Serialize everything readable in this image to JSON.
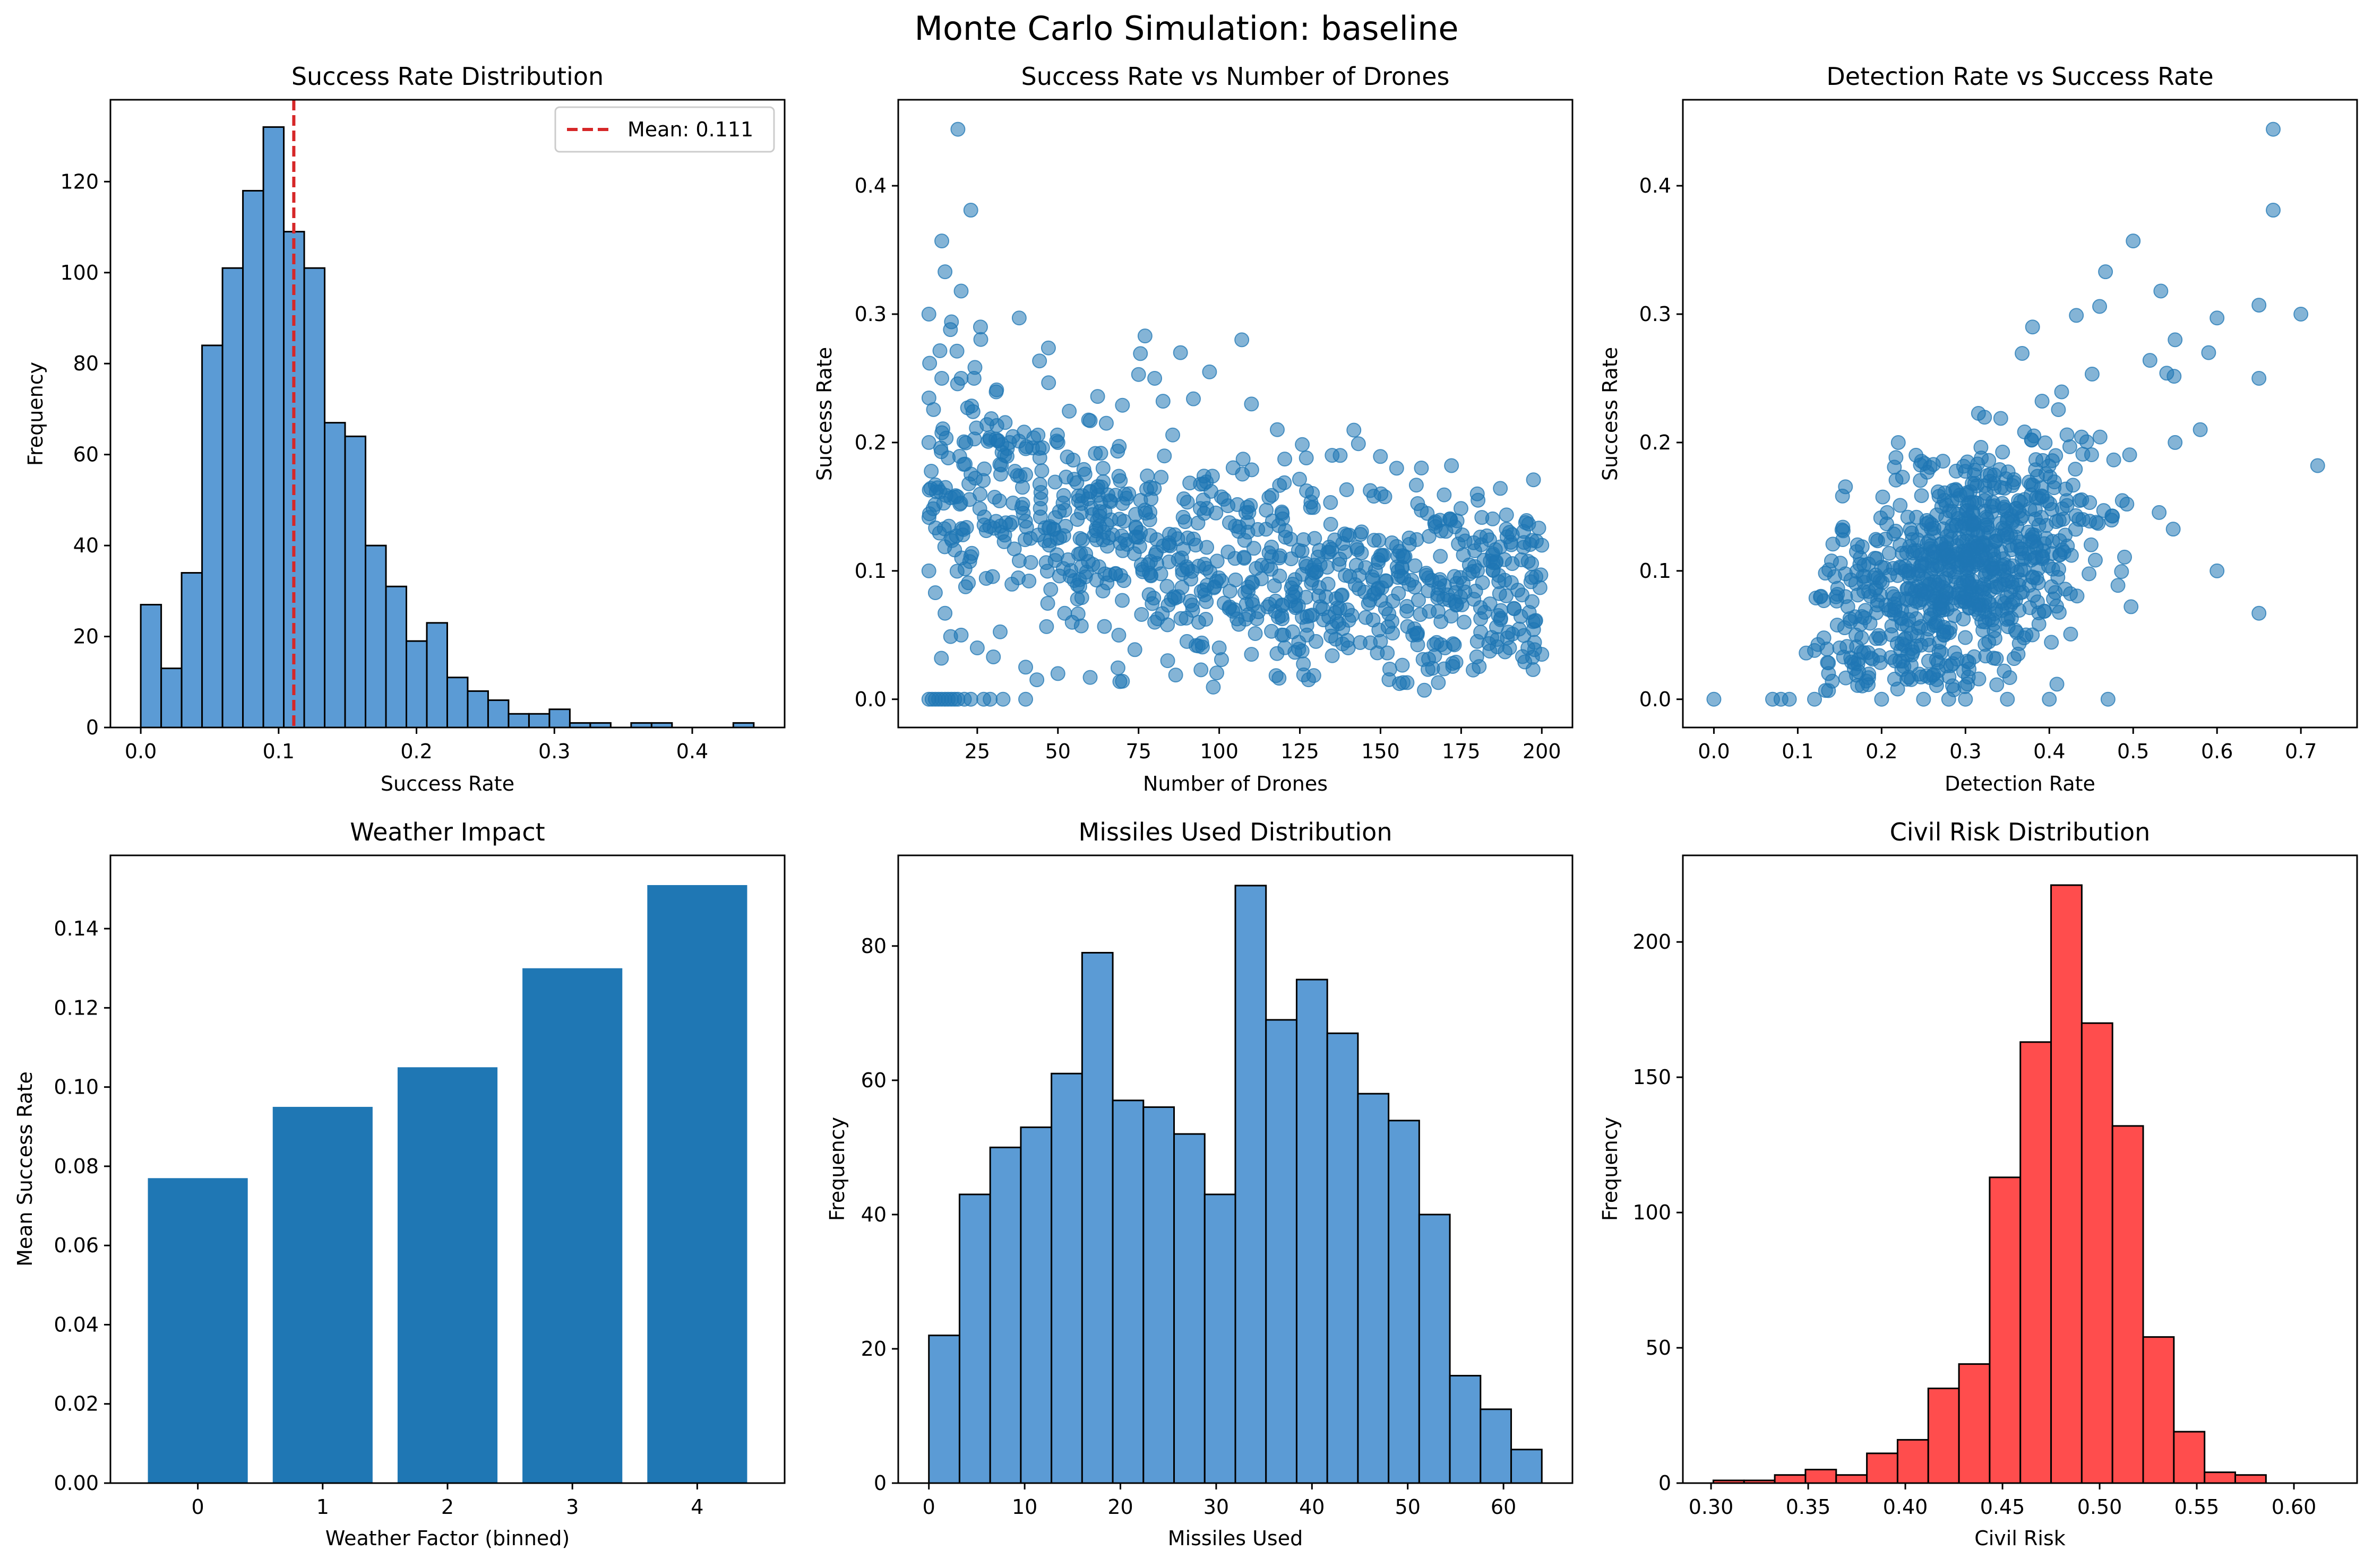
{
  "figure": {
    "suptitle": "Monte Carlo Simulation: baseline"
  },
  "colors": {
    "blue": "#1f77b4",
    "histBlue": "#5b9bd5",
    "red": "#ff4d4d",
    "meanLine": "#d62728",
    "edge": "#000000"
  },
  "chart_data": [
    {
      "id": "success",
      "type": "bar",
      "title": "Success Rate Distribution",
      "xlabel": "Success Rate",
      "ylabel": "Frequency",
      "xlim": [
        -0.022,
        0.467
      ],
      "ylim": [
        0,
        138
      ],
      "xticks": [
        0.0,
        0.1,
        0.2,
        0.3,
        0.4
      ],
      "xticklabels": [
        "0.0",
        "0.1",
        "0.2",
        "0.3",
        "0.4"
      ],
      "yticks": [
        0,
        20,
        40,
        60,
        80,
        100,
        120
      ],
      "bins": {
        "start": 0.0,
        "width": 0.01482
      },
      "values": [
        27,
        13,
        34,
        84,
        101,
        118,
        132,
        109,
        101,
        67,
        64,
        40,
        31,
        19,
        23,
        11,
        8,
        6,
        3,
        3,
        4,
        1,
        1,
        0,
        1,
        1,
        0,
        0,
        0,
        1
      ],
      "mean_line": {
        "x": 0.111,
        "label": "Mean: 0.111"
      },
      "legend": {
        "location": "upper right",
        "entries": [
          "Mean: 0.111"
        ]
      }
    },
    {
      "id": "drones",
      "type": "scatter",
      "title": "Success Rate vs Number of Drones",
      "xlabel": "Number of Drones",
      "ylabel": "Success Rate",
      "xlim": [
        0.5,
        209.5
      ],
      "ylim": [
        -0.022,
        0.467
      ],
      "xticks": [
        25,
        50,
        75,
        100,
        125,
        150,
        175,
        200
      ],
      "yticks": [
        0.0,
        0.1,
        0.2,
        0.3,
        0.4
      ],
      "yticklabels": [
        "0.0",
        "0.1",
        "0.2",
        "0.3",
        "0.4"
      ],
      "points": [
        [
          19,
          0.444
        ],
        [
          23,
          0.381
        ],
        [
          14,
          0.357
        ],
        [
          15,
          0.333
        ],
        [
          20,
          0.318
        ],
        [
          10,
          0.3
        ],
        [
          17,
          0.294
        ],
        [
          38,
          0.297
        ],
        [
          26,
          0.29
        ],
        [
          14,
          0.25
        ],
        [
          20,
          0.25
        ],
        [
          24,
          0.25
        ],
        [
          28,
          0.214
        ],
        [
          31,
          0.241
        ],
        [
          22,
          0.227
        ],
        [
          35,
          0.2
        ],
        [
          10,
          0.2
        ],
        [
          12,
          0.167
        ],
        [
          16,
          0.188
        ],
        [
          40,
          0.175
        ],
        [
          45,
          0.178
        ],
        [
          50,
          0.2
        ],
        [
          60,
          0.217
        ],
        [
          65,
          0.215
        ],
        [
          70,
          0.229
        ],
        [
          75,
          0.253
        ],
        [
          77,
          0.283
        ],
        [
          80,
          0.25
        ],
        [
          88,
          0.27
        ],
        [
          92,
          0.234
        ],
        [
          97,
          0.255
        ],
        [
          107,
          0.28
        ],
        [
          110,
          0.23
        ],
        [
          118,
          0.21
        ],
        [
          127,
          0.188
        ],
        [
          135,
          0.19
        ],
        [
          155,
          0.18
        ],
        [
          172,
          0.182
        ],
        [
          180,
          0.16
        ],
        [
          190,
          0.13
        ],
        [
          200,
          0.12
        ],
        [
          10,
          0.1
        ],
        [
          12,
          0.083
        ],
        [
          15,
          0.067
        ],
        [
          20,
          0.05
        ],
        [
          25,
          0.04
        ],
        [
          30,
          0.033
        ],
        [
          40,
          0.025
        ],
        [
          50,
          0.02
        ],
        [
          60,
          0.017
        ],
        [
          70,
          0.014
        ],
        [
          80,
          0.06
        ],
        [
          90,
          0.045
        ],
        [
          100,
          0.04
        ],
        [
          110,
          0.035
        ],
        [
          120,
          0.05
        ],
        [
          130,
          0.045
        ],
        [
          140,
          0.04
        ],
        [
          150,
          0.045
        ],
        [
          160,
          0.05
        ],
        [
          170,
          0.04
        ],
        [
          180,
          0.045
        ],
        [
          190,
          0.04
        ],
        [
          200,
          0.035
        ],
        [
          157,
          0.013
        ],
        [
          10,
          0.0
        ],
        [
          11,
          0.0
        ],
        [
          12,
          0.0
        ],
        [
          13,
          0.0
        ],
        [
          14,
          0.0
        ],
        [
          15,
          0.0
        ],
        [
          16,
          0.0
        ],
        [
          17,
          0.0
        ],
        [
          18,
          0.0
        ],
        [
          19,
          0.0
        ],
        [
          21,
          0.0
        ],
        [
          23,
          0.0
        ],
        [
          27,
          0.0
        ],
        [
          29,
          0.0
        ],
        [
          33,
          0.0
        ],
        [
          40,
          0.0
        ]
      ],
      "scatter_cloud": {
        "n": 850,
        "x_range": [
          10,
          200
        ],
        "mean_curve": {
          "a": 0.115,
          "b": 0.00024,
          "floor": 0.085
        },
        "spread": 0.055
      }
    },
    {
      "id": "detection",
      "type": "scatter",
      "title": "Detection Rate vs Success Rate",
      "xlabel": "Detection Rate",
      "ylabel": "Success Rate",
      "xlim": [
        -0.037,
        0.767
      ],
      "ylim": [
        -0.022,
        0.467
      ],
      "xticks": [
        0.0,
        0.1,
        0.2,
        0.3,
        0.4,
        0.5,
        0.6,
        0.7
      ],
      "xticklabels": [
        "0.0",
        "0.1",
        "0.2",
        "0.3",
        "0.4",
        "0.5",
        "0.6",
        "0.7"
      ],
      "yticks": [
        0.0,
        0.1,
        0.2,
        0.3,
        0.4
      ],
      "yticklabels": [
        "0.0",
        "0.1",
        "0.2",
        "0.3",
        "0.4"
      ],
      "points": [
        [
          0.667,
          0.444
        ],
        [
          0.667,
          0.381
        ],
        [
          0.5,
          0.357
        ],
        [
          0.467,
          0.333
        ],
        [
          0.533,
          0.318
        ],
        [
          0.7,
          0.3
        ],
        [
          0.65,
          0.307
        ],
        [
          0.6,
          0.297
        ],
        [
          0.38,
          0.29
        ],
        [
          0.46,
          0.306
        ],
        [
          0.72,
          0.182
        ],
        [
          0.65,
          0.25
        ],
        [
          0.65,
          0.067
        ],
        [
          0.6,
          0.1
        ],
        [
          0.59,
          0.27
        ],
        [
          0.55,
          0.28
        ],
        [
          0.54,
          0.254
        ],
        [
          0.52,
          0.264
        ],
        [
          0.0,
          0.0
        ],
        [
          0.07,
          0.0
        ],
        [
          0.08,
          0.0
        ],
        [
          0.09,
          0.0
        ],
        [
          0.12,
          0.0
        ],
        [
          0.2,
          0.0
        ],
        [
          0.25,
          0.0
        ],
        [
          0.28,
          0.0
        ],
        [
          0.3,
          0.0
        ],
        [
          0.35,
          0.0
        ],
        [
          0.4,
          0.0
        ],
        [
          0.47,
          0.0
        ],
        [
          0.12,
          0.038
        ],
        [
          0.15,
          0.04
        ],
        [
          0.11,
          0.036
        ],
        [
          0.17,
          0.115
        ],
        [
          0.55,
          0.2
        ],
        [
          0.58,
          0.21
        ]
      ],
      "scatter_cloud": {
        "n": 800,
        "x_range": [
          0.12,
          0.6
        ],
        "mean_line": {
          "slope": 0.3,
          "intercept": 0.015
        },
        "spread": 0.045
      }
    },
    {
      "id": "weather",
      "type": "bar",
      "title": "Weather Impact",
      "xlabel": "Weather Factor (binned)",
      "ylabel": "Mean Success Rate",
      "xlim": [
        -0.7,
        4.7
      ],
      "ylim": [
        0,
        0.1585
      ],
      "categories": [
        "0",
        "1",
        "2",
        "3",
        "4"
      ],
      "values": [
        0.077,
        0.095,
        0.105,
        0.13,
        0.151
      ],
      "yticks": [
        0.0,
        0.02,
        0.04,
        0.06,
        0.08,
        0.1,
        0.12,
        0.14
      ],
      "yticklabels": [
        "0.00",
        "0.02",
        "0.04",
        "0.06",
        "0.08",
        "0.10",
        "0.12",
        "0.14"
      ]
    },
    {
      "id": "missiles",
      "type": "bar",
      "title": "Missiles Used Distribution",
      "xlabel": "Missiles Used",
      "ylabel": "Frequency",
      "xlim": [
        -3.2,
        67.2
      ],
      "ylim": [
        0,
        93.5
      ],
      "xticks": [
        0,
        10,
        20,
        30,
        40,
        50,
        60
      ],
      "yticks": [
        0,
        20,
        40,
        60,
        80
      ],
      "bins": {
        "start": 0.0,
        "width": 3.2
      },
      "values": [
        22,
        43,
        50,
        53,
        61,
        79,
        57,
        56,
        52,
        43,
        89,
        69,
        75,
        67,
        58,
        54,
        40,
        16,
        11,
        5
      ]
    },
    {
      "id": "civil",
      "type": "bar",
      "title": "Civil Risk Distribution",
      "xlabel": "Civil Risk",
      "ylabel": "Frequency",
      "xlim": [
        0.2855,
        0.6325
      ],
      "ylim": [
        0,
        232
      ],
      "xticks": [
        0.3,
        0.35,
        0.4,
        0.45,
        0.5,
        0.55,
        0.6
      ],
      "xticklabels": [
        "0.30",
        "0.35",
        "0.40",
        "0.45",
        "0.50",
        "0.55",
        "0.60"
      ],
      "yticks": [
        0,
        50,
        100,
        150,
        200
      ],
      "bins": {
        "start": 0.3012,
        "width": 0.0158
      },
      "values": [
        1,
        1,
        3,
        5,
        3,
        11,
        16,
        35,
        44,
        113,
        163,
        221,
        170,
        132,
        54,
        19,
        4,
        3
      ]
    }
  ]
}
